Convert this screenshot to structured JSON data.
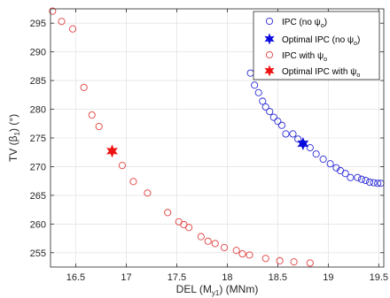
{
  "chart_data": {
    "type": "scatter",
    "title": "",
    "xlabel": {
      "main": "DEL (M",
      "sub": "y1",
      "tail": ") (MNm)"
    },
    "ylabel": {
      "main": "TV (β",
      "sub": "1",
      "tail": ") (°)"
    },
    "xlim": [
      16.25,
      19.55
    ],
    "ylim": [
      252.5,
      297.5
    ],
    "xticks": [
      16.5,
      17,
      17.5,
      18,
      18.5,
      19,
      19.5
    ],
    "xtick_labels": [
      "16.5",
      "17",
      "17.5",
      "18",
      "18.5",
      "19",
      "19.5"
    ],
    "yticks": [
      255,
      260,
      265,
      270,
      275,
      280,
      285,
      290,
      295
    ],
    "ytick_labels": [
      "255",
      "260",
      "265",
      "270",
      "275",
      "280",
      "285",
      "290",
      "295"
    ],
    "grid": true,
    "legend_position": "top-right",
    "series": [
      {
        "name": {
          "main": "IPC (no ψ",
          "sub": "o",
          "tail": ")"
        },
        "marker": "circle",
        "color": "#2b2bd6",
        "x": [
          18.23,
          18.27,
          18.31,
          18.35,
          18.38,
          18.42,
          18.46,
          18.5,
          18.54,
          18.58,
          18.65,
          18.7,
          18.75,
          18.82,
          18.88,
          18.95,
          19.02,
          19.08,
          19.12,
          19.17,
          19.22,
          19.29,
          19.33,
          19.37,
          19.41,
          19.45,
          19.49,
          19.52
        ],
        "y": [
          286.3,
          284.2,
          282.9,
          281.4,
          280.4,
          279.6,
          278.6,
          277.9,
          277.2,
          275.7,
          275.7,
          274.8,
          274.0,
          273.3,
          272.2,
          271.3,
          270.5,
          269.8,
          269.3,
          268.8,
          268.1,
          268.1,
          267.8,
          267.6,
          267.3,
          267.2,
          267.1,
          267.1
        ]
      },
      {
        "name": {
          "main": "Optimal IPC (no ψ",
          "sub": "o",
          "tail": ")"
        },
        "marker": "star",
        "color": "#0a0adc",
        "x": [
          18.75
        ],
        "y": [
          274.0
        ]
      },
      {
        "name": {
          "main": "IPC with ψ",
          "sub": "o",
          "tail": ""
        },
        "marker": "circle",
        "color": "#e04040",
        "x": [
          16.27,
          16.36,
          16.47,
          16.58,
          16.66,
          16.73,
          16.96,
          17.07,
          17.21,
          17.41,
          17.52,
          17.57,
          17.62,
          17.74,
          17.81,
          17.88,
          17.97,
          18.09,
          18.15,
          18.22,
          18.38,
          18.52,
          18.66,
          18.82
        ],
        "y": [
          297.1,
          295.3,
          294.0,
          283.8,
          279.0,
          277.0,
          270.2,
          267.4,
          265.4,
          262.0,
          260.4,
          259.9,
          259.4,
          257.8,
          257.0,
          256.6,
          255.9,
          255.4,
          254.8,
          254.6,
          254.0,
          253.6,
          253.4,
          253.2
        ]
      },
      {
        "name": {
          "main": "Optimal IPC with ψ",
          "sub": "o",
          "tail": ""
        },
        "marker": "star",
        "color": "#ee1111",
        "x": [
          16.86
        ],
        "y": [
          272.7
        ]
      }
    ]
  }
}
